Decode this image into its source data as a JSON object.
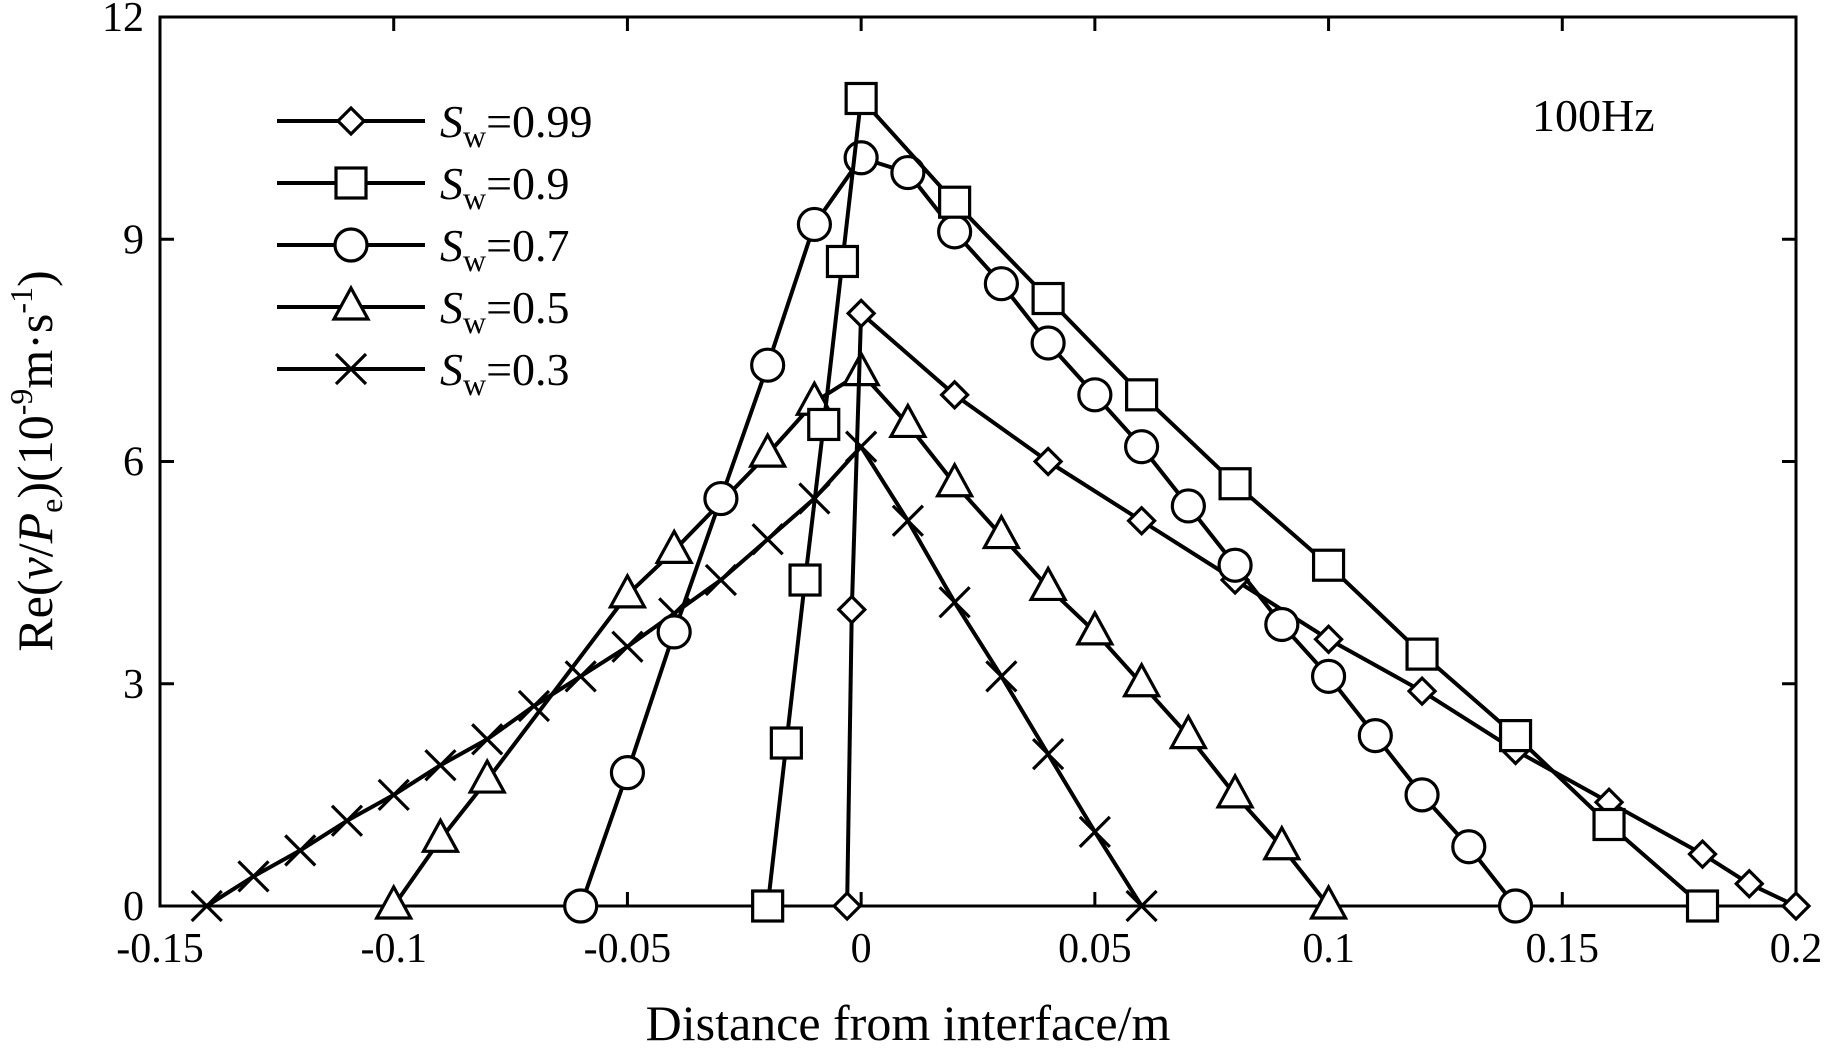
{
  "chart_data": {
    "type": "line",
    "title": "",
    "annotation": "100Hz",
    "xlabel": "Distance from interface/m",
    "ylabel": {
      "prefix": "Re(",
      "v": "v",
      "slash": "/",
      "P": "P",
      "sub_e": "e",
      "mid": ")(10",
      "exp": "-9",
      "units": "m·s",
      "units_exp": "-1",
      "close": ")"
    },
    "xlim": [
      -0.15,
      0.2
    ],
    "ylim": [
      0,
      12
    ],
    "xticks": [
      -0.15,
      -0.1,
      -0.05,
      0,
      0.05,
      0.1,
      0.15,
      0.2
    ],
    "xtick_labels": [
      "-0.15",
      "-0.1",
      "-0.05",
      "0",
      "0.05",
      "0.1",
      "0.15",
      "0.2"
    ],
    "yticks": [
      0,
      3,
      6,
      9,
      12
    ],
    "ytick_labels": [
      "0",
      "3",
      "6",
      "9",
      "12"
    ],
    "grid": false,
    "legend_position": "top-left",
    "series": [
      {
        "name": "Sw=0.99",
        "legend_S": "S",
        "legend_sub": "w",
        "legend_value": "=0.99",
        "marker": "diamond",
        "x": [
          -0.003,
          -0.002,
          0.0,
          0.02,
          0.04,
          0.06,
          0.08,
          0.1,
          0.12,
          0.14,
          0.16,
          0.18,
          0.19,
          0.2
        ],
        "y": [
          0.0,
          4.0,
          8.0,
          6.9,
          6.0,
          5.2,
          4.4,
          3.6,
          2.9,
          2.1,
          1.4,
          0.7,
          0.3,
          0.0
        ]
      },
      {
        "name": "Sw=0.9",
        "legend_S": "S",
        "legend_sub": "w",
        "legend_value": "=0.9",
        "marker": "square",
        "x": [
          -0.02,
          -0.016,
          -0.012,
          -0.008,
          -0.004,
          0.0,
          0.02,
          0.04,
          0.06,
          0.08,
          0.1,
          0.12,
          0.14,
          0.16,
          0.18
        ],
        "y": [
          0.0,
          2.2,
          4.4,
          6.5,
          8.7,
          10.9,
          9.5,
          8.2,
          6.9,
          5.7,
          4.6,
          3.4,
          2.3,
          1.1,
          0.0
        ]
      },
      {
        "name": "Sw=0.7",
        "legend_S": "S",
        "legend_sub": "w",
        "legend_value": "=0.7",
        "marker": "circle",
        "x": [
          -0.06,
          -0.05,
          -0.04,
          -0.03,
          -0.02,
          -0.01,
          0.0,
          0.01,
          0.02,
          0.03,
          0.04,
          0.05,
          0.06,
          0.07,
          0.08,
          0.09,
          0.1,
          0.11,
          0.12,
          0.13,
          0.14
        ],
        "y": [
          0.0,
          1.8,
          3.7,
          5.5,
          7.3,
          9.2,
          10.1,
          9.9,
          9.1,
          8.4,
          7.6,
          6.9,
          6.2,
          5.4,
          4.6,
          3.8,
          3.1,
          2.3,
          1.5,
          0.8,
          0.0
        ]
      },
      {
        "name": "Sw=0.5",
        "legend_S": "S",
        "legend_sub": "w",
        "legend_value": "=0.5",
        "marker": "triangle",
        "x": [
          -0.1,
          -0.09,
          -0.08,
          -0.05,
          -0.04,
          -0.02,
          -0.01,
          0.0,
          0.01,
          0.02,
          0.03,
          0.04,
          0.05,
          0.06,
          0.07,
          0.08,
          0.09,
          0.1
        ],
        "y": [
          0.0,
          0.9,
          1.7,
          4.2,
          4.8,
          6.1,
          6.8,
          7.2,
          6.5,
          5.7,
          5.0,
          4.3,
          3.7,
          3.0,
          2.3,
          1.5,
          0.8,
          0.0
        ]
      },
      {
        "name": "Sw=0.3",
        "legend_S": "S",
        "legend_sub": "w",
        "legend_value": "=0.3",
        "marker": "cross",
        "x": [
          -0.14,
          -0.13,
          -0.12,
          -0.11,
          -0.1,
          -0.09,
          -0.08,
          -0.07,
          -0.06,
          -0.05,
          -0.04,
          -0.03,
          -0.02,
          -0.01,
          0.0,
          0.01,
          0.02,
          0.03,
          0.04,
          0.05,
          0.06
        ],
        "y": [
          0.0,
          0.4,
          0.75,
          1.15,
          1.5,
          1.9,
          2.25,
          2.7,
          3.1,
          3.5,
          3.95,
          4.4,
          4.95,
          5.5,
          6.2,
          5.2,
          4.1,
          3.1,
          2.05,
          1.0,
          0.0
        ]
      }
    ]
  }
}
